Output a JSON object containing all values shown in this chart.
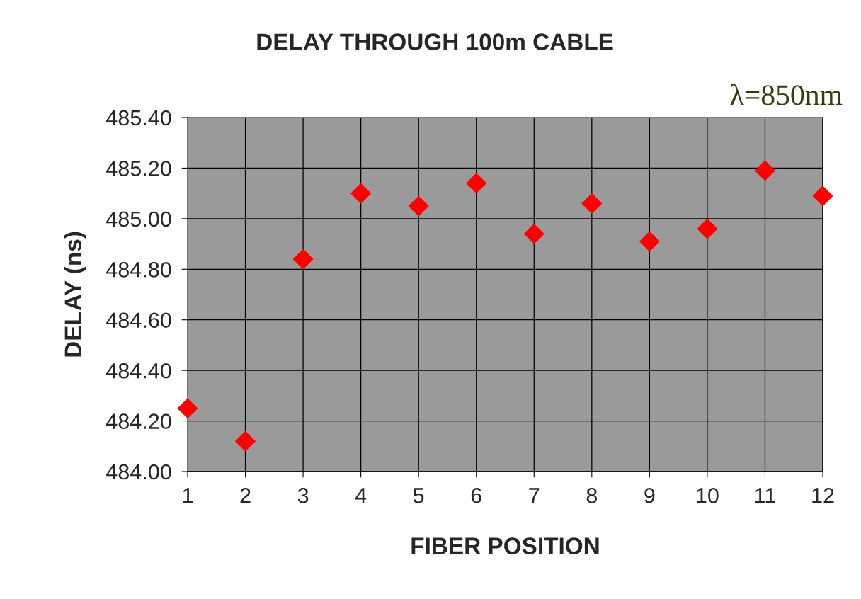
{
  "chart_data": {
    "type": "scatter",
    "title": "DELAY THROUGH 100m CABLE",
    "xlabel": "FIBER POSITION",
    "ylabel": "DELAY (ns)",
    "annotations": [
      "λ=850nm"
    ],
    "x": [
      1,
      2,
      3,
      4,
      5,
      6,
      7,
      8,
      9,
      10,
      11,
      12
    ],
    "series": [
      {
        "color": "#ff0000",
        "values": [
          484.25,
          484.12,
          484.84,
          485.1,
          485.05,
          485.14,
          484.94,
          485.06,
          484.91,
          484.96,
          485.19,
          485.09
        ]
      }
    ],
    "xlim": [
      1,
      12
    ],
    "xticks": [
      1,
      2,
      3,
      4,
      5,
      6,
      7,
      8,
      9,
      10,
      11,
      12
    ],
    "ylim": [
      484.0,
      485.4
    ],
    "yticks": [
      {
        "value": 484.0,
        "label": "484.00"
      },
      {
        "value": 484.2,
        "label": "484.20"
      },
      {
        "value": 484.4,
        "label": "484.40"
      },
      {
        "value": 484.6,
        "label": "484.60"
      },
      {
        "value": 484.8,
        "label": "484.80"
      },
      {
        "value": 485.0,
        "label": "485.00"
      },
      {
        "value": 485.2,
        "label": "485.20"
      },
      {
        "value": 485.4,
        "label": "485.40"
      }
    ],
    "grid": true,
    "marker": "diamond",
    "legend": false
  }
}
